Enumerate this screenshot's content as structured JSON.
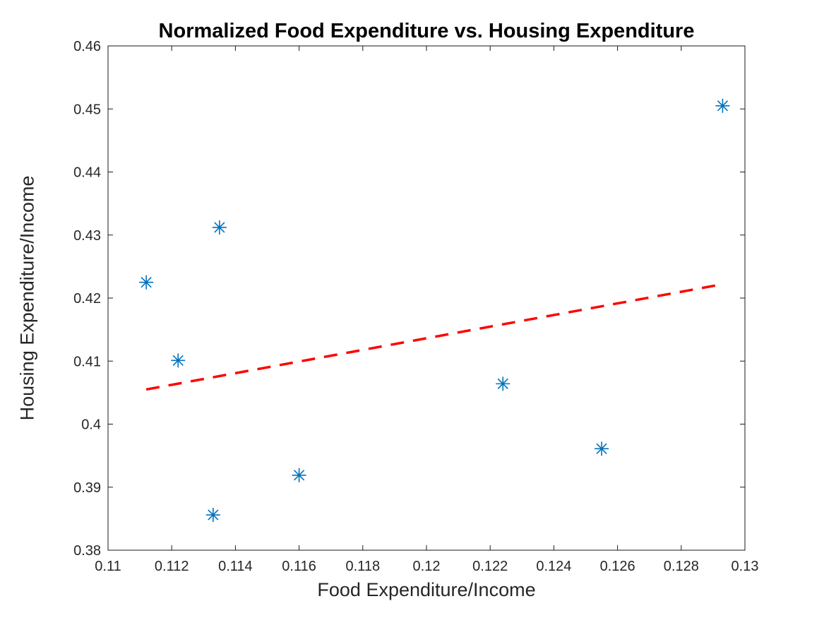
{
  "chart_data": {
    "type": "scatter",
    "title": "Normalized Food Expenditure vs. Housing Expenditure",
    "xlabel": "Food Expenditure/Income",
    "ylabel": "Housing Expenditure/Income",
    "xlim": [
      0.11,
      0.13
    ],
    "ylim": [
      0.38,
      0.46
    ],
    "xticks": [
      0.11,
      0.112,
      0.114,
      0.116,
      0.118,
      0.12,
      0.122,
      0.124,
      0.126,
      0.128,
      0.13
    ],
    "xtick_labels": [
      "0.11",
      "0.112",
      "0.114",
      "0.116",
      "0.118",
      "0.12",
      "0.122",
      "0.124",
      "0.126",
      "0.128",
      "0.13"
    ],
    "yticks": [
      0.38,
      0.39,
      0.4,
      0.41,
      0.42,
      0.43,
      0.44,
      0.45,
      0.46
    ],
    "ytick_labels": [
      "0.38",
      "0.39",
      "0.4",
      "0.41",
      "0.42",
      "0.43",
      "0.44",
      "0.45",
      "0.46"
    ],
    "grid": false,
    "legend": "none",
    "series": [
      {
        "name": "data-points",
        "type": "scatter",
        "marker": "asterisk",
        "color": "#0072BD",
        "points": [
          [
            0.1112,
            0.4225
          ],
          [
            0.1122,
            0.4101
          ],
          [
            0.1135,
            0.4312
          ],
          [
            0.1133,
            0.3856
          ],
          [
            0.116,
            0.3919
          ],
          [
            0.1224,
            0.4064
          ],
          [
            0.1255,
            0.3961
          ],
          [
            0.1293,
            0.4505
          ]
        ]
      },
      {
        "name": "linear-fit",
        "type": "line",
        "line_style": "dashed",
        "color": "#FF0000",
        "points": [
          [
            0.1112,
            0.4055
          ],
          [
            0.1293,
            0.4222
          ]
        ]
      }
    ],
    "colors": {
      "marker": "#0072BD",
      "trend_line": "#FF0000",
      "axis": "#1A1A1A",
      "tick_text": "#262626",
      "background": "#FFFFFF"
    }
  }
}
